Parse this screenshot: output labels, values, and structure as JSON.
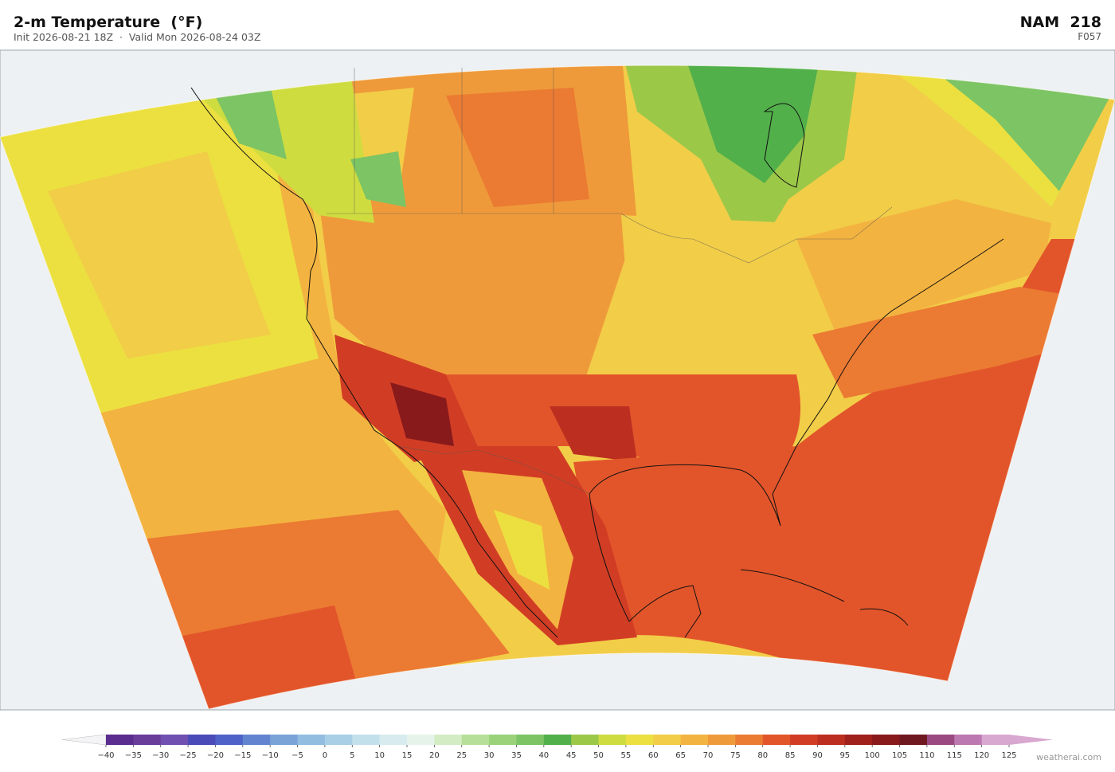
{
  "header": {
    "title": "2-m Temperature  (°F)",
    "subtitle": "Init 2026-08-21 18Z  ·  Valid Mon 2026-08-24 03Z",
    "model": "NAM  218",
    "forecast_hour": "F057"
  },
  "colorbar": {
    "ticks": [
      {
        "value": -40,
        "label": "−40"
      },
      {
        "value": -35,
        "label": "−35"
      },
      {
        "value": -30,
        "label": "−30"
      },
      {
        "value": -25,
        "label": "−25"
      },
      {
        "value": -20,
        "label": "−20"
      },
      {
        "value": -15,
        "label": "−15"
      },
      {
        "value": -10,
        "label": "−10"
      },
      {
        "value": -5,
        "label": "−5"
      },
      0,
      5,
      10,
      15,
      20,
      25,
      30,
      35,
      40,
      45,
      50,
      55,
      60,
      65,
      70,
      75,
      80,
      85,
      90,
      95,
      100,
      105,
      110,
      115,
      120,
      125
    ],
    "colors": [
      "#5b2d8e",
      "#6a3d9a",
      "#7050b0",
      "#4a4ab8",
      "#4f62c8",
      "#6284d0",
      "#7aa3d8",
      "#92bde0",
      "#a8cfe6",
      "#c2e0ec",
      "#d8ecf0",
      "#e6f3ea",
      "#d4ecc4",
      "#b6e09a",
      "#9ad27a",
      "#7cc464",
      "#52b04a",
      "#9cc848",
      "#cfdc40",
      "#ebe040",
      "#f2cd48",
      "#f3b340",
      "#ef9a3a",
      "#eb7a32",
      "#e2552a",
      "#d13d24",
      "#bc2e20",
      "#a0201c",
      "#881a1c",
      "#701820",
      "#9a4a80",
      "#bc78b0",
      "#d8a8d0"
    ],
    "under_color": "#f4f4f6",
    "over_color": "#d8a8d0"
  },
  "footer": {
    "watermark": "weatherai.com"
  }
}
